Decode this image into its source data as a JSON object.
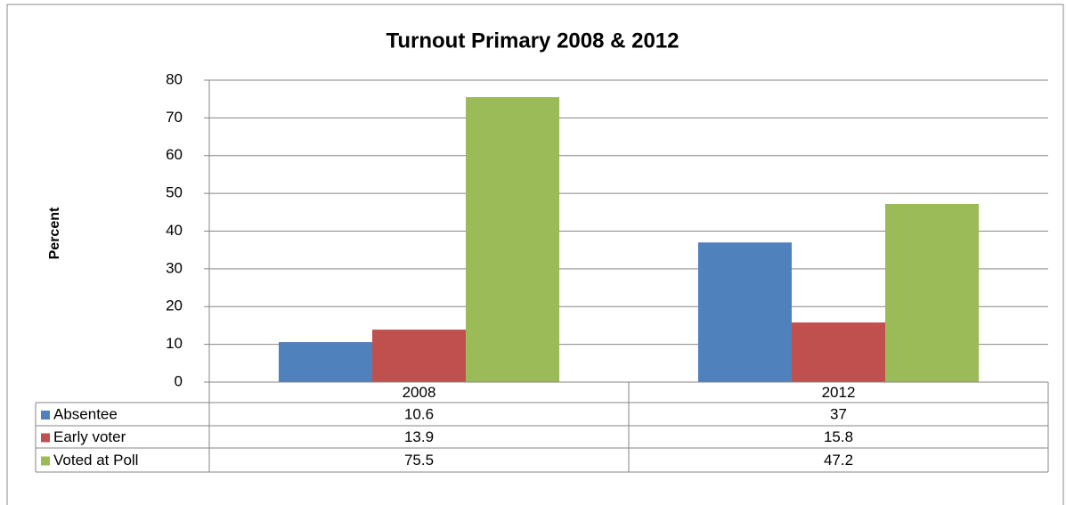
{
  "chart_data": {
    "type": "bar",
    "title": "Turnout Primary 2008 & 2012",
    "y_label": "Percent",
    "categories": [
      "2008",
      "2012"
    ],
    "series": [
      {
        "name": "Absentee",
        "color": "#4f81bd",
        "values": [
          10.6,
          37
        ]
      },
      {
        "name": "Early voter",
        "color": "#c0504d",
        "values": [
          13.9,
          15.8
        ]
      },
      {
        "name": "Voted at Poll",
        "color": "#9bbb59",
        "values": [
          75.5,
          47.2
        ]
      }
    ],
    "ylim": [
      0,
      80
    ],
    "yticks": [
      0,
      10,
      20,
      30,
      40,
      50,
      60,
      70,
      80
    ],
    "grid": true,
    "data_table": true
  }
}
